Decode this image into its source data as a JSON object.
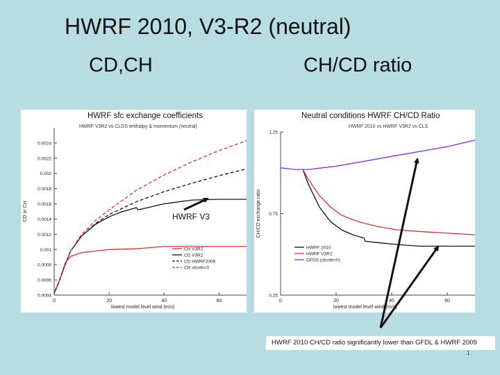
{
  "slide": {
    "title": "HWRF 2010, V3-R2 (neutral)",
    "left_heading": "CD,CH",
    "right_heading": "CH/CD ratio",
    "caption": "HWRF 2010 CH/CD ratio significantly lower than GFDL & HWRF 2009",
    "annotation": "HWRF V3",
    "page_number": "1"
  },
  "chart_data": [
    {
      "type": "line",
      "title": "HWRF sfc exchange coefficients",
      "subtitle": "HWRF V3R2 vs CLDS   enthalpy & momentum (neutral)",
      "xlabel": "lowest model level wind (m/s)",
      "ylabel": "CD or CH",
      "xlim": [
        0,
        70
      ],
      "ylim": [
        0.0004,
        0.0026
      ],
      "xticks": [
        "0",
        "20",
        "40",
        "60"
      ],
      "yticks": [
        "0.0004",
        "0.0006",
        "0.0008",
        "0.001",
        "0.0012",
        "0.0014",
        "0.0016",
        "0.0018",
        "0.002",
        "0.0022",
        "0.0024"
      ],
      "legend_position": "bottom-right",
      "series": [
        {
          "name": "CH V3R2",
          "color": "#e03030",
          "dash": "solid",
          "x": [
            0,
            2,
            4,
            6,
            10,
            15,
            20,
            30,
            40,
            50,
            60,
            70
          ],
          "y": [
            0.00043,
            0.0006,
            0.00082,
            0.00091,
            0.00096,
            0.00098,
            0.001,
            0.00101,
            0.00104,
            0.00104,
            0.00104,
            0.00104
          ]
        },
        {
          "name": "CD V3R2",
          "color": "#111111",
          "dash": "solid",
          "x": [
            0,
            2,
            4,
            6,
            10,
            15,
            20,
            25,
            30,
            30.5,
            40,
            50,
            60,
            70
          ],
          "y": [
            0.00042,
            0.0006,
            0.0008,
            0.00098,
            0.00118,
            0.00133,
            0.00143,
            0.0015,
            0.00155,
            0.00152,
            0.0016,
            0.00165,
            0.00166,
            0.00166
          ]
        },
        {
          "name": "CD HWRF2009",
          "color": "#111111",
          "dash": "dashed",
          "x": [
            0,
            2,
            4,
            6,
            10,
            15,
            20,
            30,
            40,
            50,
            60,
            70
          ],
          "y": [
            0.00042,
            0.0006,
            0.0008,
            0.00098,
            0.00118,
            0.00134,
            0.00146,
            0.00163,
            0.00176,
            0.00187,
            0.00197,
            0.00206
          ]
        },
        {
          "name": "CH sfcnth=0",
          "color": "#e03030",
          "dash": "dashed",
          "x": [
            0,
            2,
            4,
            6,
            10,
            15,
            20,
            30,
            40,
            50,
            60,
            70
          ],
          "y": [
            0.00042,
            0.0006,
            0.0008,
            0.00098,
            0.0012,
            0.00138,
            0.00152,
            0.00178,
            0.00198,
            0.00215,
            0.0023,
            0.00243
          ]
        }
      ]
    },
    {
      "type": "line",
      "title": "Neutral conditions HWRF  CH/CD Ratio",
      "subtitle": "HWRF 2010 vs HWRF V3R2 vs CLS",
      "xlabel": "lowest model level wind (m/s)",
      "ylabel": "CH/CD exchange ratio",
      "xlim": [
        0,
        70
      ],
      "ylim": [
        0.25,
        1.25
      ],
      "xticks": [
        "0",
        "20",
        "40",
        "60"
      ],
      "yticks": [
        "0.25",
        "0.75",
        "1.25"
      ],
      "legend_position": "bottom-right",
      "series": [
        {
          "name": "HWRF 2010",
          "color": "#111111",
          "x": [
            8,
            10,
            14,
            18,
            22,
            26,
            30,
            30.5,
            36,
            42,
            50,
            60,
            70
          ],
          "y": [
            1.02,
            0.93,
            0.79,
            0.7,
            0.65,
            0.62,
            0.6,
            0.58,
            0.57,
            0.56,
            0.55,
            0.55,
            0.55
          ]
        },
        {
          "name": "HWRF V3R2",
          "color": "#e03030",
          "x": [
            8,
            10,
            14,
            18,
            22,
            28,
            35,
            42,
            50,
            60,
            70
          ],
          "y": [
            1.02,
            0.96,
            0.86,
            0.79,
            0.74,
            0.7,
            0.67,
            0.65,
            0.64,
            0.63,
            0.62
          ]
        },
        {
          "name": "GFDS (sfcnth=0)",
          "color": "#8a2be2",
          "x": [
            0,
            5,
            8,
            10,
            15,
            20,
            30,
            40,
            50,
            60,
            70
          ],
          "y": [
            1.03,
            1.02,
            1.02,
            1.02,
            1.03,
            1.04,
            1.07,
            1.1,
            1.13,
            1.16,
            1.2
          ]
        }
      ]
    }
  ]
}
